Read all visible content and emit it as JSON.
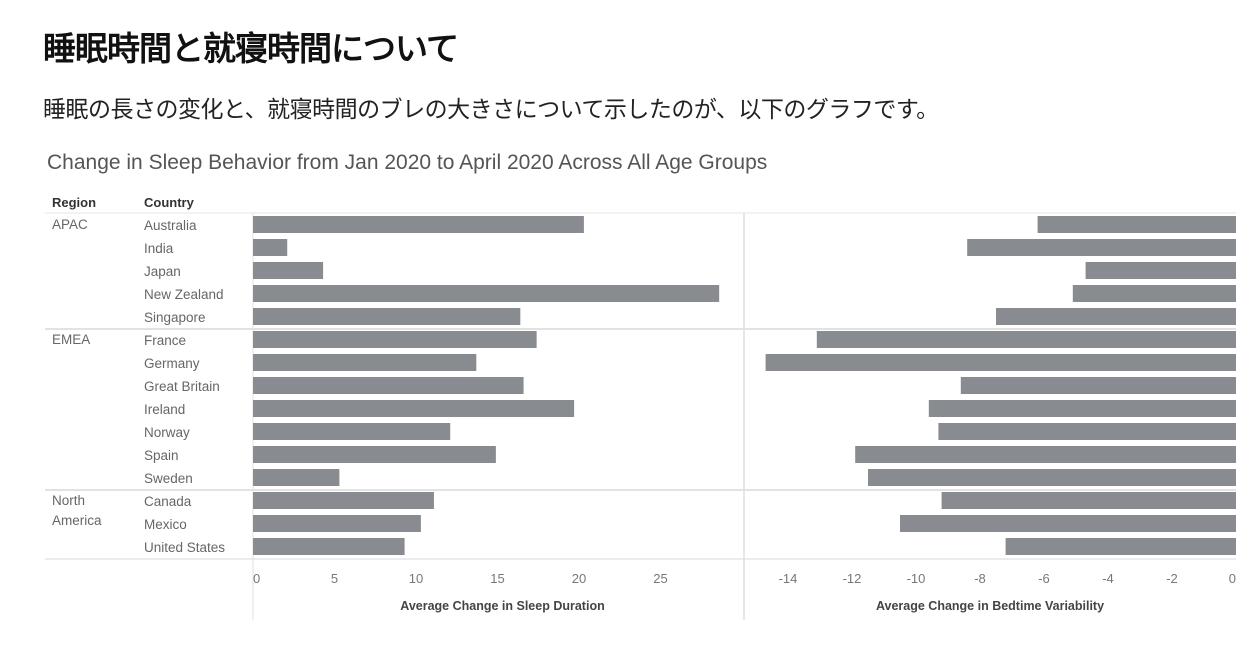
{
  "heading": "睡眠時間と就寝時間について",
  "subtitle": "睡眠の長さの変化と、就寝時間のブレの大きさについて示したのが、以下のグラフです。",
  "chart_data": {
    "type": "bar",
    "title": "Change in Sleep Behavior from Jan 2020 to April 2020 Across All Age Groups",
    "column_headers": {
      "region": "Region",
      "country": "Country"
    },
    "groups": [
      {
        "region": "APAC",
        "countries": [
          "Australia",
          "India",
          "Japan",
          "New Zealand",
          "Singapore"
        ]
      },
      {
        "region": "EMEA",
        "countries": [
          "France",
          "Germany",
          "Great Britain",
          "Ireland",
          "Norway",
          "Spain",
          "Sweden"
        ]
      },
      {
        "region": "North America",
        "countries": [
          "Canada",
          "Mexico",
          "United States"
        ]
      }
    ],
    "categories": [
      "Australia",
      "India",
      "Japan",
      "New Zealand",
      "Singapore",
      "France",
      "Germany",
      "Great Britain",
      "Ireland",
      "Norway",
      "Spain",
      "Sweden",
      "Canada",
      "Mexico",
      "United States"
    ],
    "panels": [
      {
        "xlabel": "Average Change in Sleep Duration",
        "xlim": [
          0,
          30
        ],
        "ticks": [
          0,
          5,
          10,
          15,
          20,
          25
        ],
        "values": [
          20.3,
          2.1,
          4.3,
          28.6,
          16.4,
          17.4,
          13.7,
          16.6,
          19.7,
          12.1,
          14.9,
          5.3,
          11.1,
          10.3,
          9.3
        ]
      },
      {
        "xlabel": "Average Change in Bedtime Variability",
        "xlim": [
          -15.2,
          0
        ],
        "ticks": [
          -14,
          -12,
          -10,
          -8,
          -6,
          -4,
          -2,
          0
        ],
        "values": [
          -6.2,
          -8.4,
          -4.7,
          -5.1,
          -7.5,
          -13.1,
          -14.7,
          -8.6,
          -9.6,
          -9.3,
          -11.9,
          -11.5,
          -9.2,
          -10.5,
          -7.2
        ]
      }
    ],
    "bar_color": "#888b8f",
    "grid": false
  }
}
